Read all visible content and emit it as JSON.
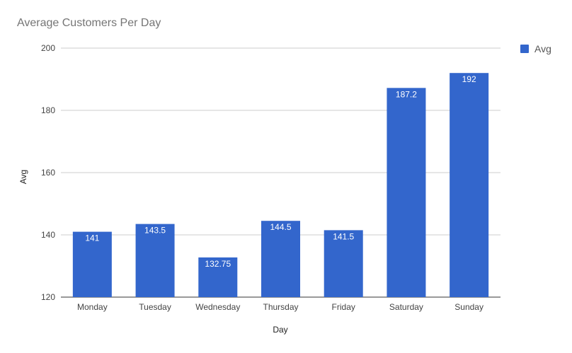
{
  "chart_data": {
    "type": "bar",
    "title": "Average Customers Per Day",
    "xlabel": "Day",
    "ylabel": "Avg",
    "categories": [
      "Monday",
      "Tuesday",
      "Wednesday",
      "Thursday",
      "Friday",
      "Saturday",
      "Sunday"
    ],
    "series": [
      {
        "name": "Avg",
        "values": [
          141,
          143.5,
          132.75,
          144.5,
          141.5,
          187.2,
          192
        ],
        "labels": [
          "141",
          "143.5",
          "132.75",
          "144.5",
          "141.5",
          "187.2",
          "192"
        ]
      }
    ],
    "ylim": [
      120,
      200
    ],
    "yticks": [
      120,
      140,
      160,
      180,
      200
    ],
    "ytick_labels": [
      "120",
      "140",
      "160",
      "180",
      "200"
    ],
    "grid": true,
    "legend_position": "right",
    "bar_color": "#3366cc"
  }
}
